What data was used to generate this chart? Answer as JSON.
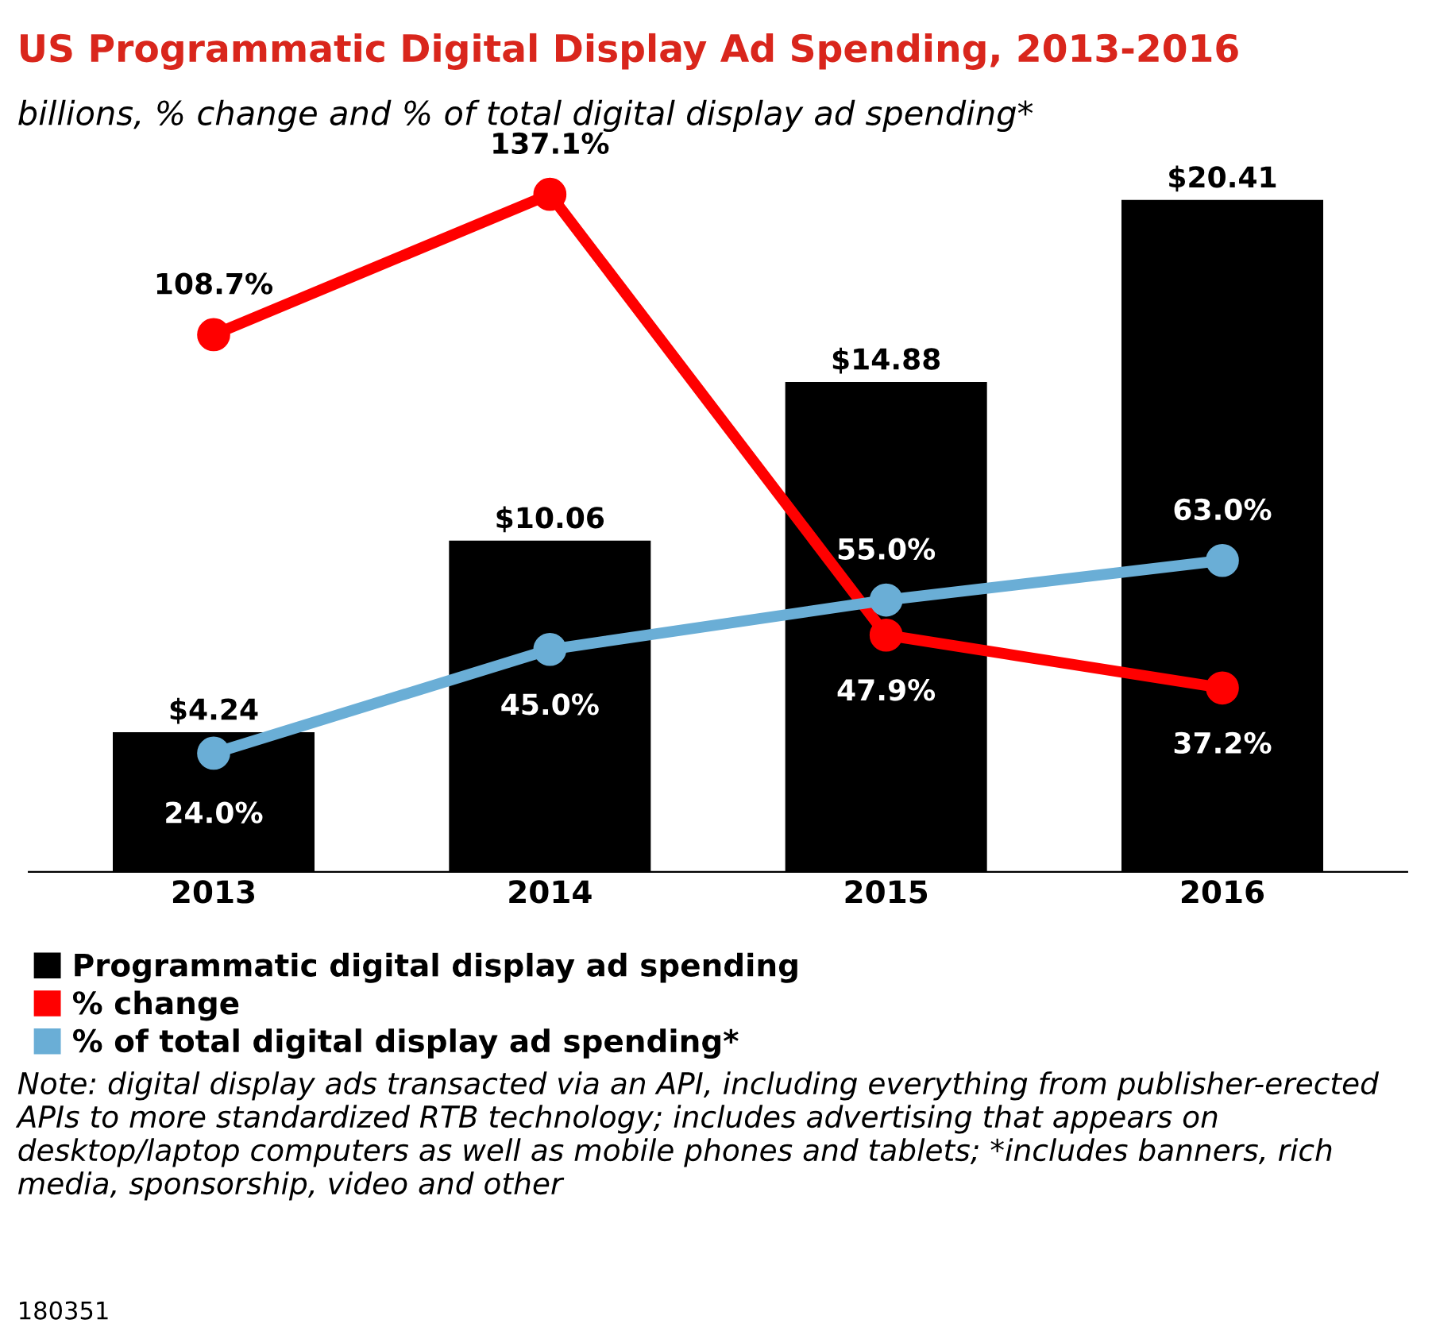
{
  "chart_data": {
    "type": "bar",
    "title": "US Programmatic Digital Display Ad Spending, 2013-2016",
    "subtitle": "billions, % change and % of total digital display ad spending*",
    "categories": [
      "2013",
      "2014",
      "2015",
      "2016"
    ],
    "series": [
      {
        "name": "Programmatic digital display ad spending",
        "color": "#000000",
        "values": [
          4.24,
          10.06,
          14.88,
          20.41
        ],
        "value_labels": [
          "$4.24",
          "$10.06",
          "$14.88",
          "$20.41"
        ]
      },
      {
        "name": "% change",
        "type": "line",
        "axis": "y2",
        "color": "#ff0000",
        "values": [
          108.7,
          137.1,
          47.9,
          37.2
        ],
        "value_labels": [
          "108.7%",
          "137.1%",
          "47.9%",
          "37.2%"
        ]
      },
      {
        "name": "% of total digital display ad spending*",
        "type": "line",
        "axis": "y2",
        "color": "#6aaed6",
        "values": [
          24.0,
          45.0,
          55.0,
          63.0
        ],
        "value_labels": [
          "24.0%",
          "45.0%",
          "55.0%",
          "63.0%"
        ]
      }
    ],
    "marker": "circle",
    "legend": "bottom",
    "tick_labels": "x",
    "annotations": [
      "Note: digital display ads transacted via an API, including everything from publisher-erected APIs to more standardized RTB technology; includes advertising that appears on desktop/laptop computers as well as mobile phones and tablets; *includes banners, rich media, sponsorship, video and other",
      "180351"
    ]
  }
}
